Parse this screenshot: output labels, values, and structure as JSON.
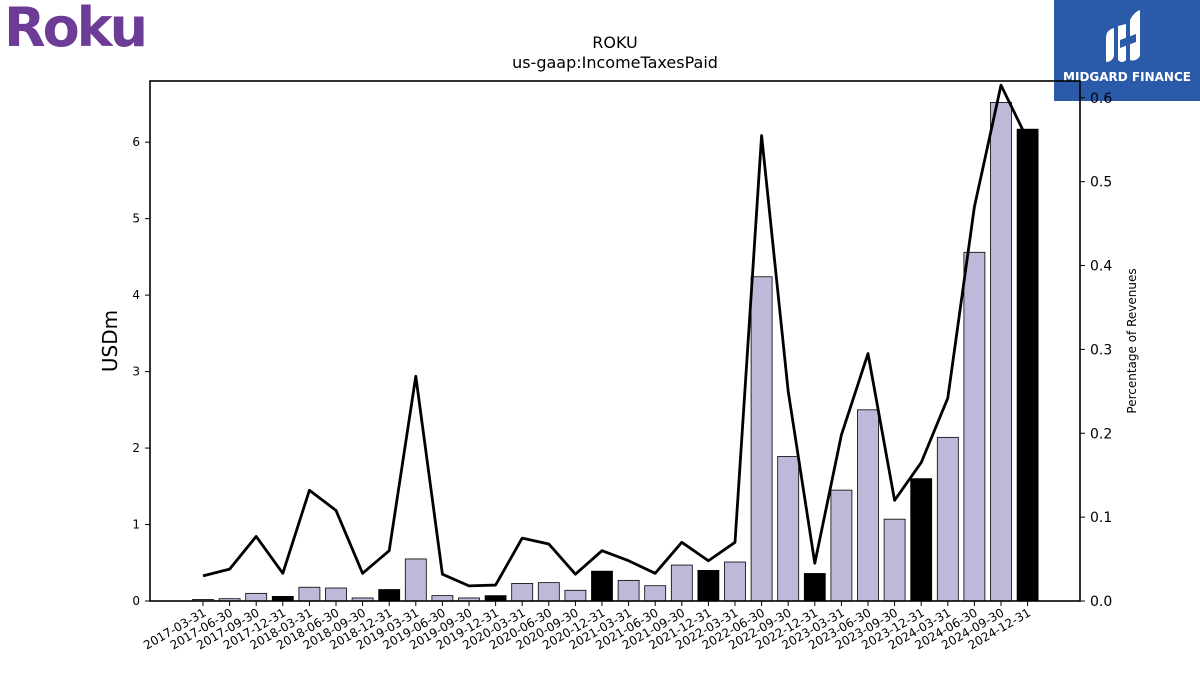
{
  "branding": {
    "brand_logo_text": "Roku",
    "brand_color": "#6c3c97",
    "partner_logo_text": "MIDGARD FINANCE",
    "partner_bg": "#2b5aa8"
  },
  "chart_data": {
    "type": "bar",
    "title": "ROKU",
    "subtitle": "us-gaap:IncomeTaxesPaid",
    "ylabel": "USDm",
    "y2label": "Percentage of Revenues",
    "ylim": [
      0,
      6.8
    ],
    "y2lim": [
      0,
      0.62
    ],
    "yticks": [
      "0",
      "1",
      "2",
      "3",
      "4",
      "5",
      "6"
    ],
    "y2ticks": [
      "0.0",
      "0.1",
      "0.2",
      "0.3",
      "0.4",
      "0.5",
      "0.6"
    ],
    "categories": [
      "2017-03-31",
      "2017-06-30",
      "2017-09-30",
      "2017-12-31",
      "2018-03-31",
      "2018-06-30",
      "2018-09-30",
      "2018-12-31",
      "2019-03-31",
      "2019-06-30",
      "2019-09-30",
      "2019-12-31",
      "2020-03-31",
      "2020-06-30",
      "2020-09-30",
      "2020-12-31",
      "2021-03-31",
      "2021-06-30",
      "2021-09-30",
      "2021-12-31",
      "2022-03-31",
      "2022-06-30",
      "2022-09-30",
      "2022-12-31",
      "2023-03-31",
      "2023-06-30",
      "2023-09-30",
      "2023-12-31",
      "2024-03-31",
      "2024-06-30",
      "2024-09-30",
      "2024-12-31"
    ],
    "series": [
      {
        "kind": "bar",
        "values": [
          0.02,
          0.03,
          0.1,
          0.06,
          0.18,
          0.17,
          0.04,
          0.15,
          0.55,
          0.07,
          0.04,
          0.07,
          0.23,
          0.24,
          0.14,
          0.39,
          0.27,
          0.2,
          0.47,
          0.4,
          0.51,
          4.24,
          1.89,
          0.36,
          1.45,
          2.5,
          1.07,
          1.6,
          2.14,
          4.56,
          6.52,
          6.17
        ],
        "highlight": [
          false,
          false,
          false,
          true,
          false,
          false,
          false,
          true,
          false,
          false,
          false,
          true,
          false,
          false,
          false,
          true,
          false,
          false,
          false,
          true,
          false,
          false,
          false,
          true,
          false,
          false,
          false,
          true,
          false,
          false,
          false,
          true
        ],
        "color": "#bdbad9",
        "highlight_color": "#000000"
      },
      {
        "kind": "line",
        "axis": "right",
        "values": [
          0.03,
          0.038,
          0.077,
          0.033,
          0.132,
          0.108,
          0.033,
          0.06,
          0.268,
          0.032,
          0.018,
          0.019,
          0.075,
          0.068,
          0.032,
          0.06,
          0.048,
          0.033,
          0.07,
          0.048,
          0.07,
          0.555,
          0.25,
          0.045,
          0.198,
          0.295,
          0.12,
          0.165,
          0.242,
          0.47,
          0.615,
          0.55
        ],
        "color": "#000000"
      }
    ]
  }
}
